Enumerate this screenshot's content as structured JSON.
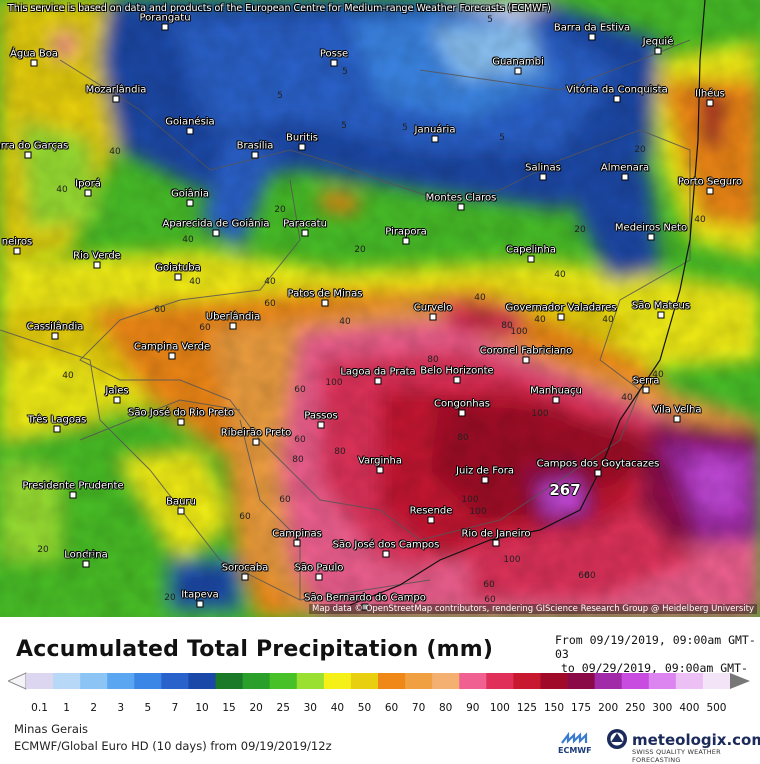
{
  "notice": "This service is based on data and products of the European Centre for Medium-range Weather Forecasts (ECMWF)",
  "attribution": "Map data © OpenStreetMap contributors, rendering GIScience Research Group @ Heidelberg University",
  "title": "Accumulated Total Precipitation (mm)",
  "range_from": "From 09/19/2019, 09:00am GMT-03",
  "range_to": "to 09/29/2019, 09:00am GMT-03",
  "region": "Minas Gerais",
  "model": "ECMWF/Global Euro HD (10 days) from 09/19/2019/12z",
  "brand": {
    "ecmwf": "ECMWF",
    "name": "meteologix.com",
    "tagline": "SWISS QUALITY WEATHER FORECASTING"
  },
  "max_value": "267",
  "legend": {
    "values": [
      "0.1",
      "1",
      "2",
      "3",
      "5",
      "7",
      "10",
      "15",
      "20",
      "25",
      "30",
      "40",
      "50",
      "60",
      "70",
      "80",
      "90",
      "100",
      "125",
      "150",
      "175",
      "200",
      "250",
      "300",
      "400",
      "500"
    ],
    "colors": [
      "#dcd6f0",
      "#b8d8f8",
      "#8cc4f6",
      "#5aa6f0",
      "#3a86e6",
      "#2a62cc",
      "#1a48a8",
      "#1a7a2a",
      "#2aa02a",
      "#48c028",
      "#9ae030",
      "#f4f018",
      "#e8d010",
      "#f08818",
      "#f0a040",
      "#f4b070",
      "#f06090",
      "#e0305a",
      "#c81830",
      "#a00a28",
      "#8a0a48",
      "#a02aa8",
      "#c84ce0",
      "#dc84f0",
      "#ecc0f4",
      "#f4e4f8"
    ]
  },
  "cities": [
    {
      "name": "Porangatu"
    },
    {
      "name": "Barra da Estiva"
    },
    {
      "name": "Água Boa"
    },
    {
      "name": "Posse"
    },
    {
      "name": "Jequié"
    },
    {
      "name": "Guanambi"
    },
    {
      "name": "Mozarlândia"
    },
    {
      "name": "Vitória da Conquista"
    },
    {
      "name": "Ilhéus"
    },
    {
      "name": "Goianésia"
    },
    {
      "name": "Barra do Garças"
    },
    {
      "name": "Brasília"
    },
    {
      "name": "Buritis"
    },
    {
      "name": "Januária"
    },
    {
      "name": "Salinas"
    },
    {
      "name": "Almenara"
    },
    {
      "name": "Porto Seguro"
    },
    {
      "name": "Iporá"
    },
    {
      "name": "Goiânia"
    },
    {
      "name": "Montes Claros"
    },
    {
      "name": "Aparecida de Goiânia"
    },
    {
      "name": "Paracatu"
    },
    {
      "name": "Pirapora"
    },
    {
      "name": "Medeiros Neto"
    },
    {
      "name": "Capelinha"
    },
    {
      "name": "neiros"
    },
    {
      "name": "Rio Verde"
    },
    {
      "name": "Goiatuba"
    },
    {
      "name": "Patos de Minas"
    },
    {
      "name": "Governador Valadares"
    },
    {
      "name": "São Mateus"
    },
    {
      "name": "Curvelo"
    },
    {
      "name": "Uberlândia"
    },
    {
      "name": "Cassilândia"
    },
    {
      "name": "Campina Verde"
    },
    {
      "name": "Coronel Fabriciano"
    },
    {
      "name": "Lagoa da Prata"
    },
    {
      "name": "Belo Horizonte"
    },
    {
      "name": "Serra"
    },
    {
      "name": "Jales"
    },
    {
      "name": "Manhuaçu"
    },
    {
      "name": "São José do Rio Preto"
    },
    {
      "name": "Congonhas"
    },
    {
      "name": "Vila Velha"
    },
    {
      "name": "Três Lagoas"
    },
    {
      "name": "Passos"
    },
    {
      "name": "Ribeirão Preto"
    },
    {
      "name": "Campos dos Goytacazes"
    },
    {
      "name": "Varginha"
    },
    {
      "name": "Juiz de Fora"
    },
    {
      "name": "Presidente Prudente"
    },
    {
      "name": "Bauru"
    },
    {
      "name": "Resende"
    },
    {
      "name": "Campinas"
    },
    {
      "name": "São José dos Campos"
    },
    {
      "name": "Rio de Janeiro"
    },
    {
      "name": "Londrina"
    },
    {
      "name": "Sorocaba"
    },
    {
      "name": "São Paulo"
    },
    {
      "name": "Itapeva"
    },
    {
      "name": "São Bernardo do Campo"
    }
  ],
  "contour_labels": [
    "5",
    "5",
    "5",
    "5",
    "5",
    "5",
    "20",
    "20",
    "20",
    "20",
    "40",
    "40",
    "40",
    "40",
    "40",
    "40",
    "40",
    "40",
    "40",
    "40",
    "40",
    "40",
    "40",
    "40",
    "60",
    "60",
    "60",
    "60",
    "60",
    "60",
    "60",
    "60",
    "60",
    "80",
    "80",
    "80",
    "80",
    "80",
    "100",
    "100",
    "100",
    "100",
    "100",
    "100",
    "20",
    "20",
    "20",
    "60",
    "60"
  ]
}
